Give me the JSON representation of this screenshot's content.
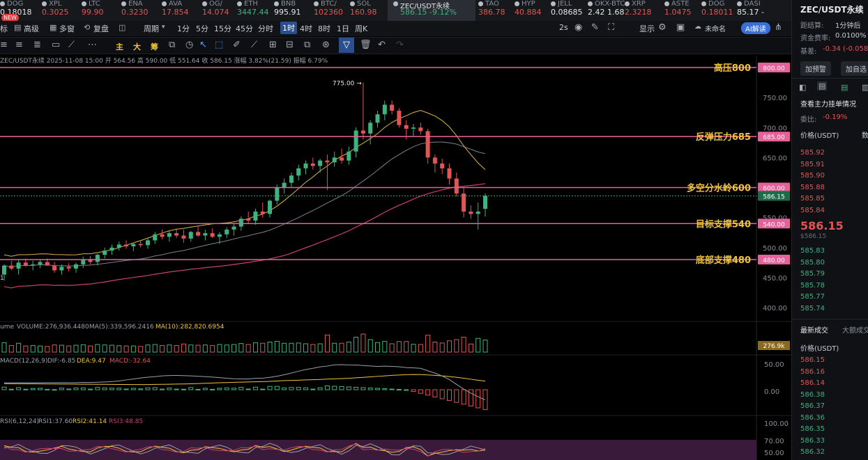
{
  "tickers": [
    {
      "name": "DOG",
      "price": "0.18018",
      "color": "#e6e6e6"
    },
    {
      "name": "XPL",
      "price": "0.3025",
      "color": "#e05656"
    },
    {
      "name": "LTC",
      "price": "99.90",
      "color": "#e05656"
    },
    {
      "name": "ENA",
      "price": "0.3230",
      "color": "#e05656"
    },
    {
      "name": "AVA",
      "price": "17.854",
      "color": "#e05656"
    },
    {
      "name": "OG/",
      "price": "14.074",
      "color": "#e05656"
    },
    {
      "name": "ETH",
      "price": "3447.44",
      "color": "#3fb37f"
    },
    {
      "name": "BNB",
      "price": "995.91",
      "color": "#e6e6e6"
    },
    {
      "name": "BTC/",
      "price": "102360",
      "color": "#e05656"
    },
    {
      "name": "SOL",
      "price": "160.98",
      "color": "#e05656"
    },
    {
      "name": "ZEC/USDT永续",
      "price": "586.15  -9.12%",
      "color": "#3fb37f"
    },
    {
      "name": "TAO",
      "price": "386.78",
      "color": "#e05656"
    },
    {
      "name": "HYP",
      "price": "40.884",
      "color": "#e05656"
    },
    {
      "name": "JELL",
      "price": "0.08685",
      "color": "#e6e6e6"
    },
    {
      "name": "OKX-BTC",
      "price": "2.42  1.68",
      "color": "#e6e6e6"
    },
    {
      "name": "XRP",
      "price": "2.3218",
      "color": "#e05656"
    },
    {
      "name": "ASTE",
      "price": "1.0475",
      "color": "#e05656"
    },
    {
      "name": "DOG",
      "price": "0.18011",
      "color": "#e05656"
    },
    {
      "name": "DASI",
      "price": "85.17 -",
      "color": "#e6e6e6"
    }
  ],
  "new_badge": "NEW",
  "toolbar1": {
    "left_items": [
      "标",
      "高级",
      "多窗",
      "复盘",
      "周期"
    ],
    "periods": [
      "1分",
      "5分",
      "15分",
      "45分",
      "分时",
      "1时",
      "4时",
      "8时",
      "1日",
      "周K"
    ],
    "active_period": "1时",
    "right_items": [
      "2s",
      "显示",
      "未命名",
      "AI解读"
    ]
  },
  "toolbar2": {
    "labels": [
      "主",
      "大",
      "筹"
    ]
  },
  "chart_info": "ZEC/USDT永续 2025-11-08 15:00 开 564.56 高 590.00 低 551.64 收 586.15 涨幅 3.82%(21.59) 振幅 6.79%",
  "price_axis": {
    "min": 400,
    "max": 800,
    "ticks": [
      "800.00",
      "750.00",
      "700.00",
      "650.00",
      "600.00",
      "550.00",
      "500.00",
      "450.00",
      "400.00"
    ]
  },
  "levels": [
    {
      "label": "高压800",
      "value": 800,
      "tag": "800.00"
    },
    {
      "label": "反弹压力685",
      "value": 685,
      "tag": "685.00"
    },
    {
      "label": "多空分水岭600",
      "value": 600,
      "tag": "600.00"
    },
    {
      "label": "目标支撑540",
      "value": 540,
      "tag": "540.00"
    },
    {
      "label": "底部支撑480",
      "value": 480,
      "tag": "480.00"
    }
  ],
  "last_price": {
    "value": 586.15,
    "tag": "586.15"
  },
  "high_marker": "775.00",
  "left_marker": "1",
  "volume": {
    "label": "ume",
    "text": "VOLUME:276,936.4480",
    "ma5": "MA(5):339,596.2416",
    "ma10": "MA(10):282,820.6954",
    "tag": "276.9k"
  },
  "macd": {
    "label": "MACD(12,26,9)",
    "dif": "DIF:-6.85",
    "dea": "DEA:9.47",
    "macd": "MACD:-32.64",
    "ticks": [
      "50.00",
      "0.00"
    ]
  },
  "rsi": {
    "label": "RSI(6,12,24)",
    "r1": "RSI1:37.60",
    "r2": "RSI2:41.14",
    "r3": "RSI3:48.85",
    "ticks": [
      "100.00",
      "70.00",
      "50.00"
    ]
  },
  "colors": {
    "up": "#3fb37f",
    "down": "#e05656",
    "level": "#e8609a",
    "level_label": "#f0c33c",
    "ma_yellow": "#d9b44a",
    "ma_gray": "#7d818a",
    "ma_pink": "#c8426e"
  },
  "chart_data": {
    "type": "candlestick",
    "x_label": "1h candles",
    "candles": [
      [
        455,
        472,
        445,
        470
      ],
      [
        470,
        478,
        462,
        465
      ],
      [
        465,
        480,
        455,
        475
      ],
      [
        475,
        482,
        468,
        470
      ],
      [
        470,
        478,
        462,
        472
      ],
      [
        472,
        480,
        466,
        476
      ],
      [
        476,
        482,
        470,
        470
      ],
      [
        470,
        476,
        458,
        462
      ],
      [
        462,
        472,
        455,
        468
      ],
      [
        468,
        474,
        460,
        465
      ],
      [
        465,
        475,
        458,
        472
      ],
      [
        472,
        485,
        466,
        480
      ],
      [
        480,
        486,
        472,
        476
      ],
      [
        476,
        490,
        470,
        488
      ],
      [
        488,
        500,
        482,
        495
      ],
      [
        495,
        505,
        488,
        500
      ],
      [
        500,
        510,
        495,
        505
      ],
      [
        505,
        512,
        498,
        502
      ],
      [
        502,
        508,
        494,
        506
      ],
      [
        506,
        512,
        500,
        504
      ],
      [
        504,
        516,
        498,
        512
      ],
      [
        512,
        526,
        506,
        522
      ],
      [
        522,
        530,
        514,
        518
      ],
      [
        518,
        528,
        510,
        524
      ],
      [
        524,
        532,
        516,
        520
      ],
      [
        520,
        530,
        508,
        515
      ],
      [
        515,
        528,
        510,
        526
      ],
      [
        526,
        535,
        518,
        520
      ],
      [
        520,
        530,
        512,
        524
      ],
      [
        524,
        532,
        516,
        518
      ],
      [
        518,
        526,
        506,
        522
      ],
      [
        522,
        534,
        516,
        530
      ],
      [
        530,
        540,
        520,
        535
      ],
      [
        535,
        552,
        528,
        548
      ],
      [
        548,
        560,
        540,
        545
      ],
      [
        545,
        565,
        538,
        560
      ],
      [
        560,
        575,
        550,
        556
      ],
      [
        556,
        580,
        550,
        578
      ],
      [
        578,
        605,
        572,
        600
      ],
      [
        600,
        615,
        590,
        608
      ],
      [
        608,
        625,
        600,
        620
      ],
      [
        620,
        638,
        612,
        632
      ],
      [
        632,
        645,
        622,
        640
      ],
      [
        640,
        650,
        630,
        636
      ],
      [
        636,
        648,
        625,
        645
      ],
      [
        645,
        655,
        596,
        642
      ],
      [
        642,
        660,
        635,
        650
      ],
      [
        650,
        665,
        640,
        645
      ],
      [
        645,
        668,
        638,
        660
      ],
      [
        660,
        700,
        650,
        695
      ],
      [
        695,
        775,
        680,
        690
      ],
      [
        690,
        712,
        672,
        708
      ],
      [
        708,
        728,
        700,
        722
      ],
      [
        722,
        745,
        712,
        738
      ],
      [
        738,
        745,
        722,
        728
      ],
      [
        728,
        732,
        700,
        704
      ],
      [
        704,
        712,
        680,
        698
      ],
      [
        698,
        706,
        685,
        700
      ],
      [
        700,
        708,
        688,
        694
      ],
      [
        694,
        698,
        640,
        650
      ],
      [
        650,
        655,
        625,
        640
      ],
      [
        640,
        648,
        622,
        632
      ],
      [
        632,
        640,
        605,
        615
      ],
      [
        615,
        625,
        585,
        590
      ],
      [
        590,
        600,
        550,
        560
      ],
      [
        560,
        570,
        548,
        556
      ],
      [
        556,
        575,
        530,
        560
      ],
      [
        564.56,
        590,
        551.64,
        586.15
      ]
    ]
  }
}
